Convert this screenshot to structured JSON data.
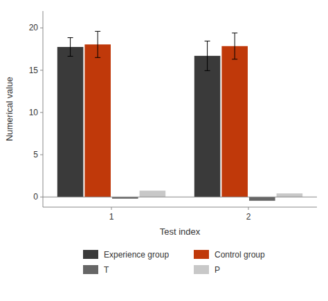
{
  "chart_data": {
    "type": "bar",
    "categories": [
      "1",
      "2"
    ],
    "series": [
      {
        "name": "Experience group",
        "color": "#3a3a3a",
        "values": [
          17.75,
          16.7
        ],
        "errors": [
          1.1,
          1.75
        ]
      },
      {
        "name": "Control group",
        "color": "#c0390a",
        "values": [
          18.05,
          17.85
        ],
        "errors": [
          1.55,
          1.55
        ]
      },
      {
        "name": "T",
        "color": "#666666",
        "values": [
          -0.2,
          -0.45
        ]
      },
      {
        "name": "P",
        "color": "#c8c8c8",
        "values": [
          0.75,
          0.42
        ]
      }
    ],
    "xlabel": "Test index",
    "ylabel": "Numerical value",
    "ylim": [
      -1.2,
      22
    ],
    "yticks": [
      0,
      5,
      10,
      15,
      20
    ],
    "grid": false,
    "legend": "bottom"
  }
}
